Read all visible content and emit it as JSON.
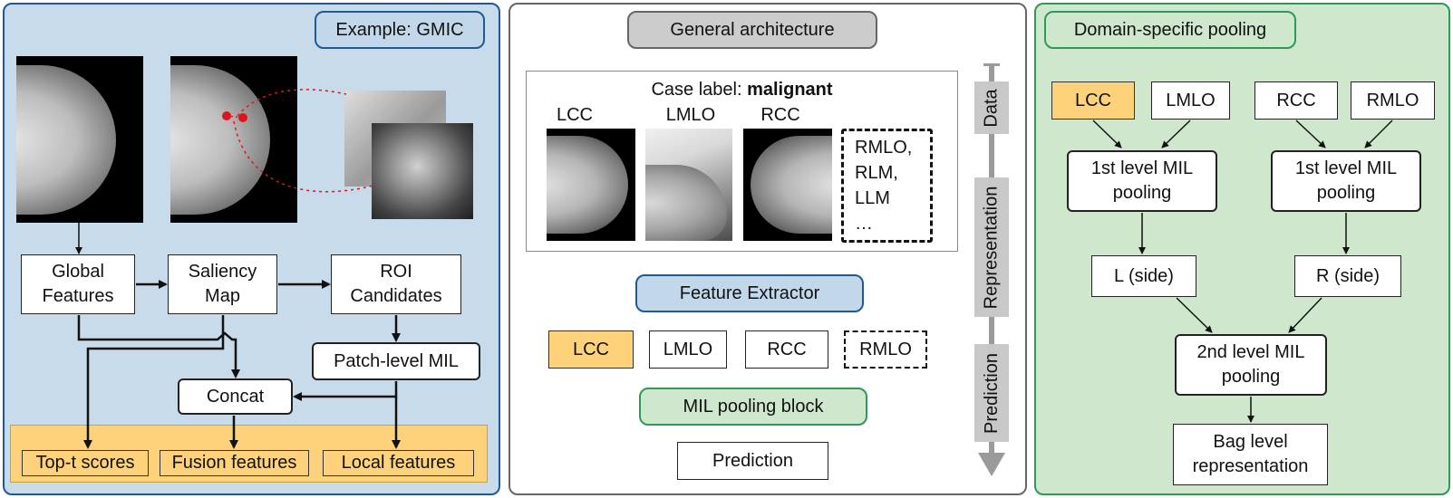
{
  "colors": {
    "left_bg": "#c8dbea",
    "left_border": "#1f5a96",
    "mid_border": "#666666",
    "right_bg": "#cfe8cd",
    "right_border": "#2e9a55",
    "orange": "#fdd27a",
    "orange_border": "#caa23a",
    "blue_pill": "#c2d8ea",
    "green_pill": "#cfe8cd",
    "gray_pill": "#cccccc",
    "red_dot": "#e0141e"
  },
  "left": {
    "title": "Example: GMIC",
    "global_features": "Global\nFeatures",
    "saliency_map": "Saliency\nMap",
    "roi_candidates": "ROI\nCandidates",
    "patch_level_mil": "Patch-level MIL",
    "concat": "Concat",
    "outputs": [
      "Top-t scores",
      "Fusion features",
      "Local features"
    ]
  },
  "middle": {
    "title": "General architecture",
    "case_label_prefix": "Case label: ",
    "case_label_value": "malignant",
    "views": [
      "LCC",
      "LMLO",
      "RCC"
    ],
    "other_views": "RMLO,\nRLM,\nLLM\n…",
    "feature_extractor": "Feature Extractor",
    "features": [
      "LCC",
      "LMLO",
      "RCC",
      "RMLO"
    ],
    "mil_pooling_block": "MIL pooling block",
    "prediction": "Prediction",
    "axis": [
      "Data",
      "Representation",
      "Prediction"
    ]
  },
  "right": {
    "title": "Domain-specific pooling",
    "views": [
      "LCC",
      "LMLO",
      "RCC",
      "RMLO"
    ],
    "first_level_left": "1st level MIL\npooling",
    "first_level_right": "1st level MIL\npooling",
    "l_side": "L (side)",
    "r_side": "R (side)",
    "second_level": "2nd level MIL\npooling",
    "bag_level": "Bag level\nrepresentation"
  }
}
